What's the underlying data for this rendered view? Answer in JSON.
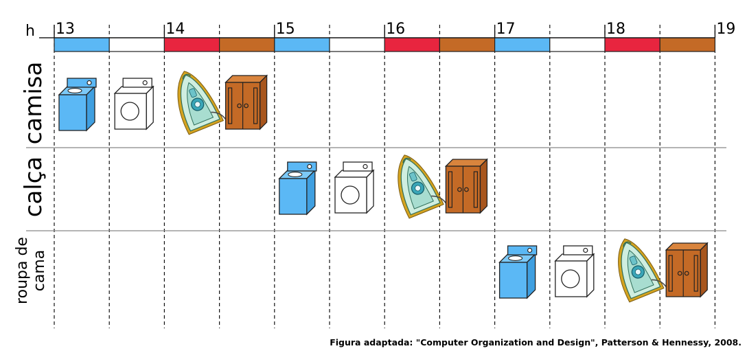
{
  "axis": {
    "unit_label": "h",
    "hour_labels": [
      "13",
      "14",
      "15",
      "16",
      "17",
      "18",
      "19"
    ]
  },
  "stages": [
    {
      "name": "washer",
      "color": "#5bb8f5"
    },
    {
      "name": "dryer",
      "color": "#ffffff"
    },
    {
      "name": "iron",
      "color": "#e8253f"
    },
    {
      "name": "closet",
      "color": "#c46a26"
    }
  ],
  "rows": [
    {
      "label_lines": [
        "camisa"
      ],
      "start_slot": 0
    },
    {
      "label_lines": [
        "calça"
      ],
      "start_slot": 4
    },
    {
      "label_lines": [
        "roupa de",
        "cama"
      ],
      "start_slot": 8
    }
  ],
  "icons": {
    "washer": "washing-machine-icon",
    "dryer": "dryer-icon",
    "iron": "iron-icon",
    "closet": "wardrobe-icon"
  },
  "caption": "Figura adaptada: \"Computer Organization and Design\", Patterson & Hennessy, 2008."
}
